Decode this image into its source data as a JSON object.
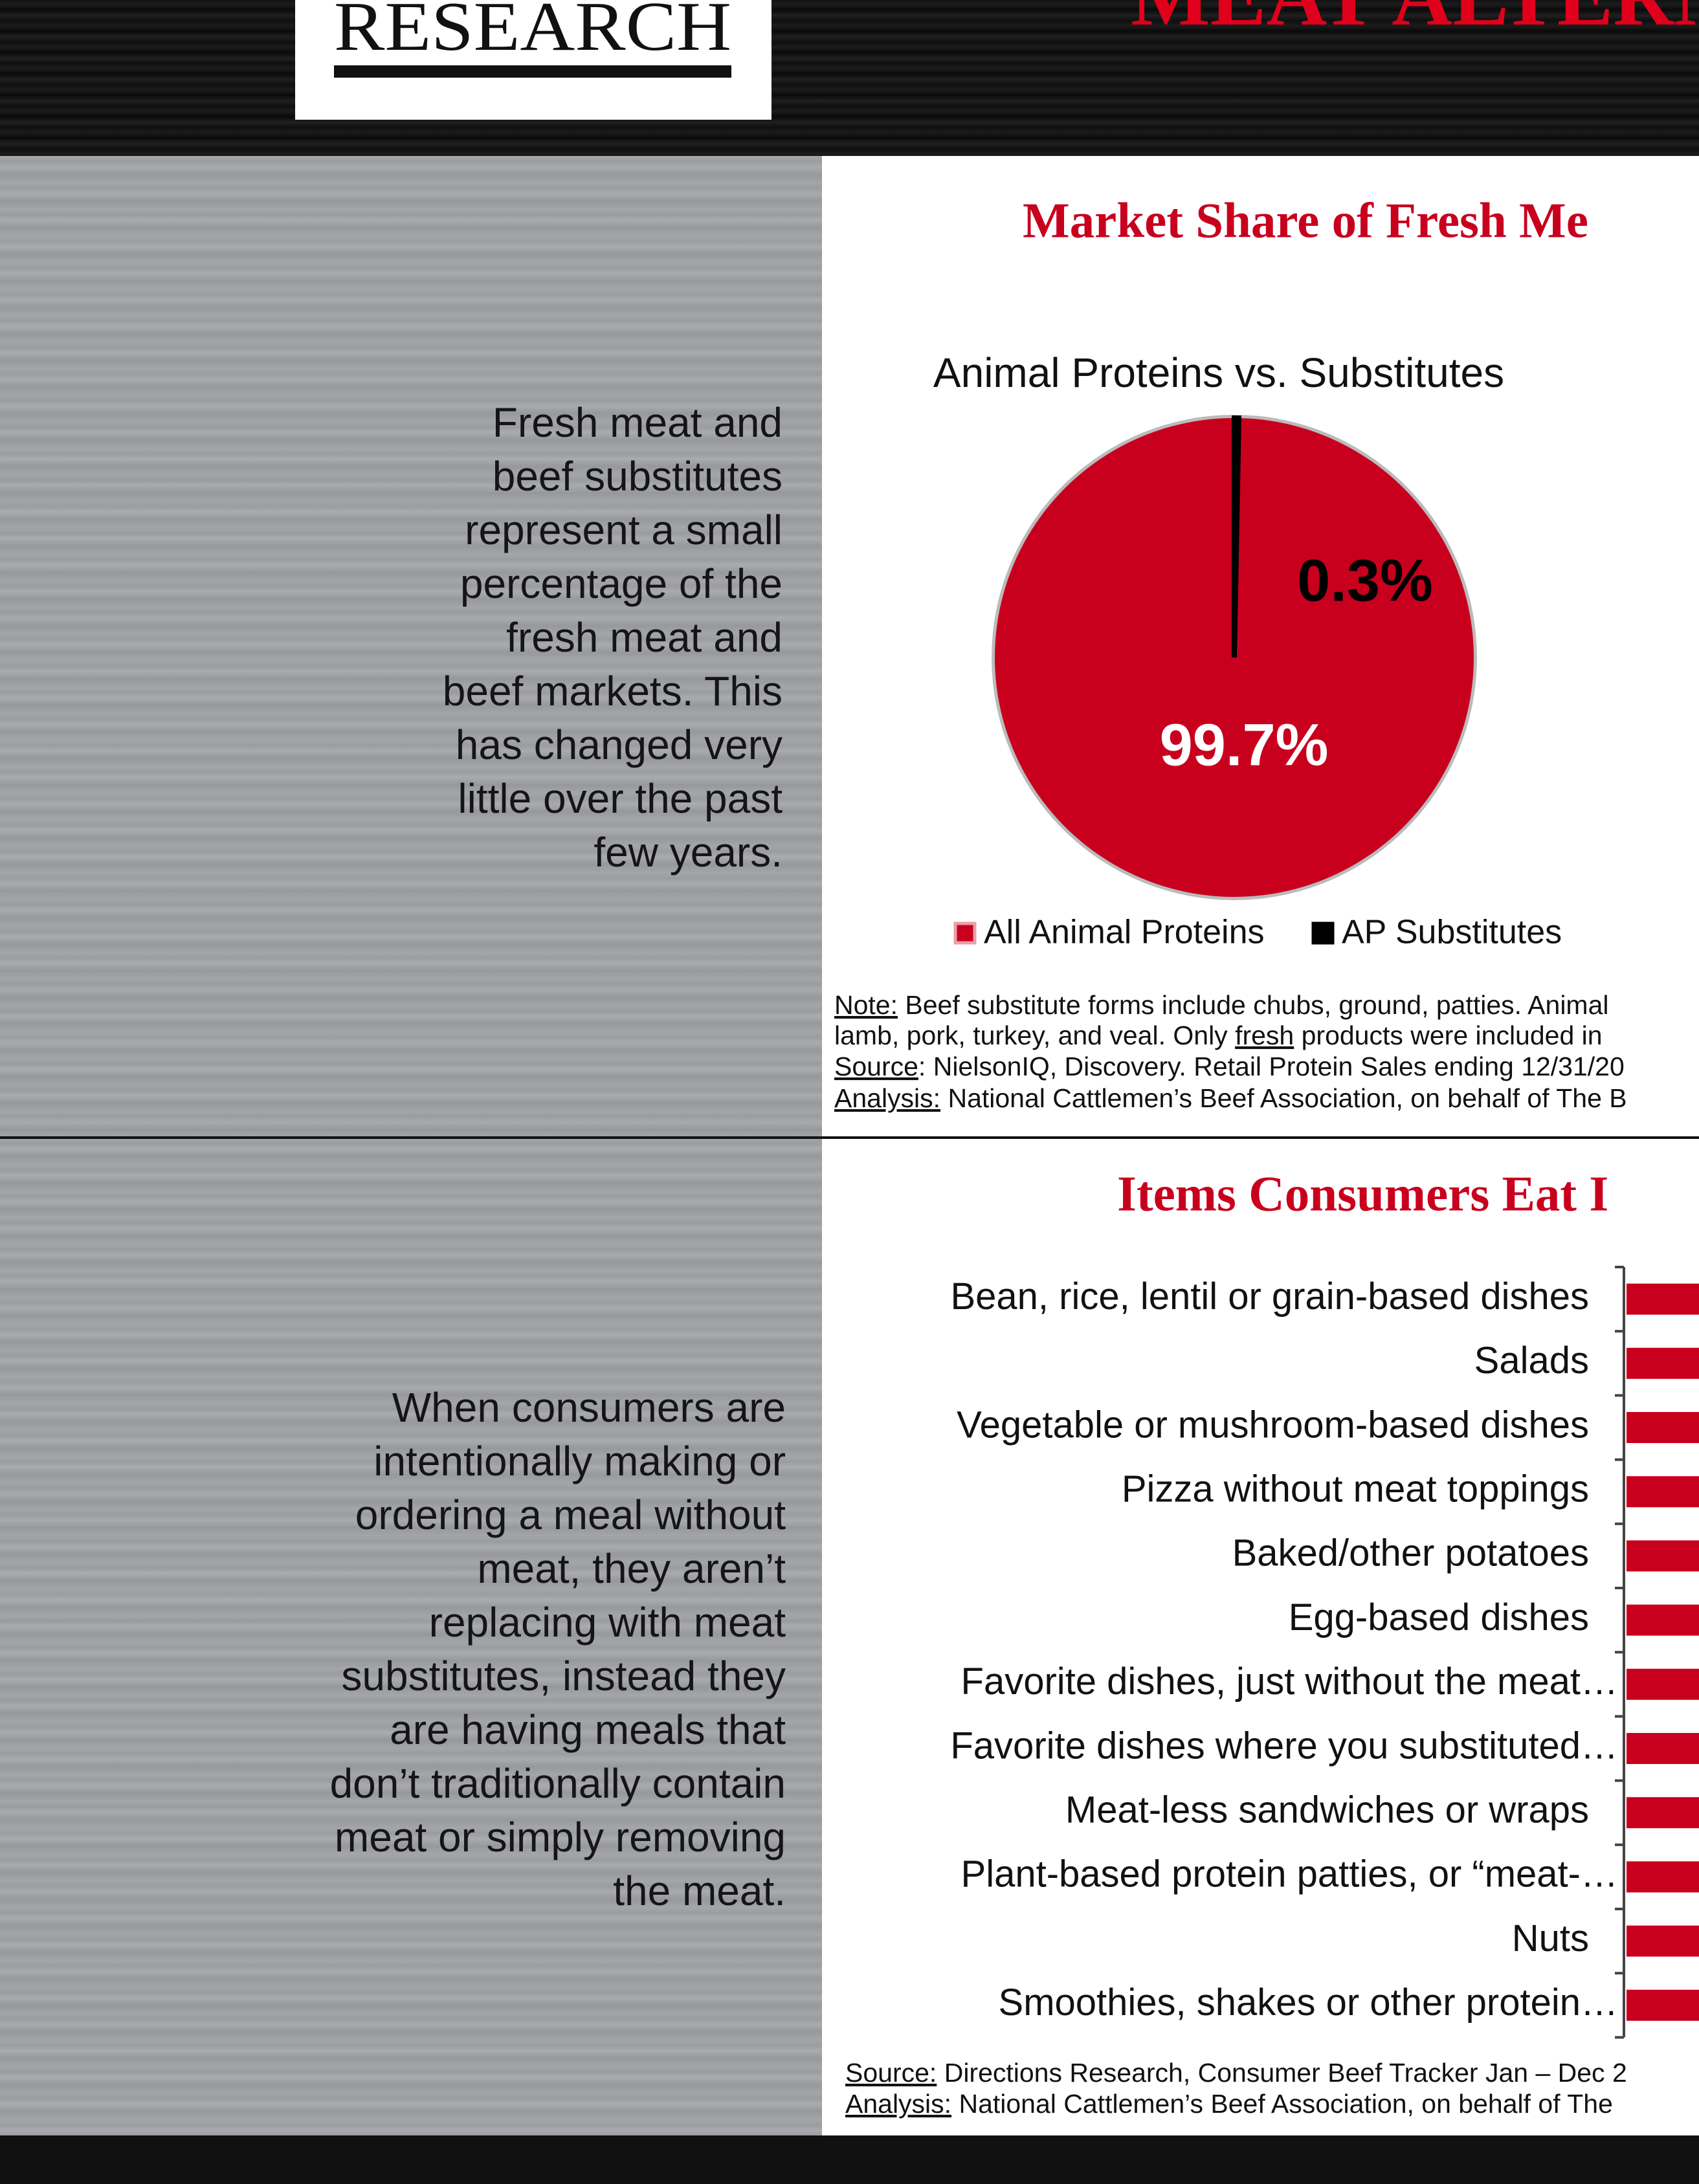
{
  "header": {
    "logo": "RESEARCH",
    "title": "MEAT ALTERN"
  },
  "sections": [
    {
      "text_lines": [
        "Fresh meat and",
        "beef substitutes",
        "represent a small",
        "percentage of the",
        "fresh meat and",
        "beef markets. This",
        "has changed very",
        "little over the past",
        "few years."
      ]
    },
    {
      "text_lines": [
        "When consumers are",
        "intentionally making or",
        "ordering a meal without",
        "meat, they aren’t",
        "replacing with meat",
        "substitutes, instead they",
        "are having meals that",
        "don’t traditionally contain",
        "meat or simply removing",
        "the meat."
      ]
    }
  ],
  "chart_data": [
    {
      "type": "pie",
      "title": "Market Share of Fresh Me",
      "subtitle": "Animal Proteins vs. Substitutes",
      "categories": [
        "All Animal Proteins",
        "AP Substitutes"
      ],
      "values": [
        99.7,
        0.3
      ],
      "value_labels": [
        "99.7%",
        "0.3%"
      ],
      "colors": [
        "#c8001e",
        "#000000"
      ],
      "notes": [
        [
          "Note:",
          " Beef substitute forms include chubs, ground, patties. Animal"
        ],
        [
          "lamb, pork, turkey, and veal. Only ",
          "fresh",
          " products were included in"
        ],
        [
          "Source",
          ": NielsonIQ, Discovery. Retail Protein Sales ending 12/31/20"
        ],
        [
          "Analysis:",
          " National Cattlemen’s Beef Association, on behalf of The B"
        ]
      ]
    },
    {
      "type": "bar",
      "orientation": "horizontal",
      "title": "Items Consumers Eat I",
      "color": "#c8001e",
      "categories": [
        "Bean, rice, lentil or grain-based dishes",
        "Salads",
        "Vegetable or mushroom-based dishes",
        "Pizza without meat toppings",
        "Baked/other potatoes",
        "Egg-based dishes",
        "Favorite dishes, just without the meat…",
        "Favorite dishes where you substituted…",
        "Meat-less sandwiches or wraps",
        "Plant-based protein patties, or “meat-…",
        "Nuts",
        "Smoothies, shakes or other protein…"
      ],
      "notes": [
        [
          "Source:",
          " Directions Research, Consumer Beef Tracker Jan – Dec 2"
        ],
        [
          "Analysis:",
          " National Cattlemen’s Beef Association, on behalf of The"
        ]
      ]
    }
  ]
}
